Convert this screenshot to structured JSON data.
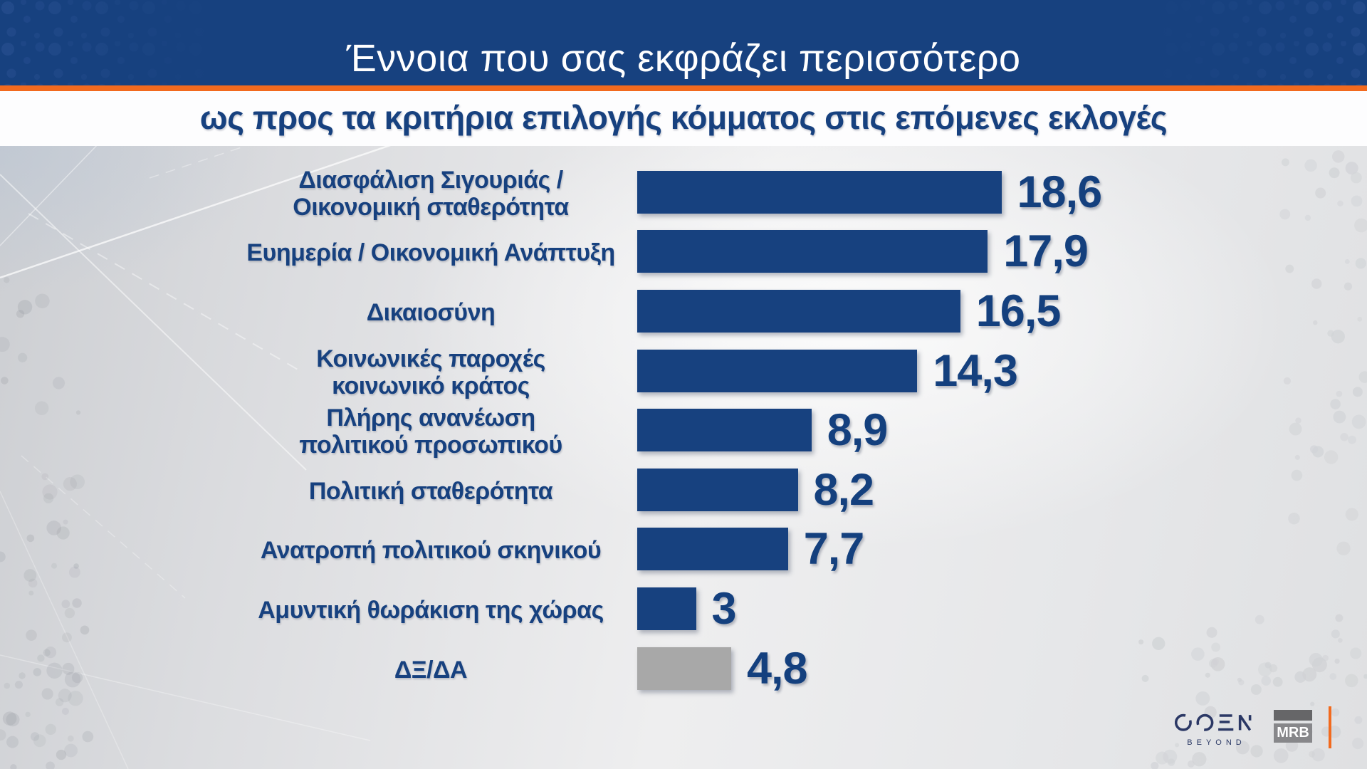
{
  "header": {
    "title": "Έννοια που σας εκφράζει περισσότερο"
  },
  "subtitle": {
    "text": "ως προς τα κριτήρια επιλογής κόμματος στις επόμενες εκλογές"
  },
  "chart_data": {
    "type": "bar",
    "orientation": "horizontal",
    "categories": [
      "Διασφάλιση Σιγουριάς /\nΟικονομική σταθερότητα",
      "Ευημερία / Οικονομική Ανάπτυξη",
      "Δικαιοσύνη",
      "Κοινωνικές παροχές\nκοινωνικό κράτος",
      "Πλήρης ανανέωση\nπολιτικού προσωπικού",
      "Πολιτική σταθερότητα",
      "Ανατροπή πολιτικού σκηνικού",
      "Αμυντική θωράκιση της χώρας",
      "ΔΞ/ΔΑ"
    ],
    "values": [
      18.6,
      17.9,
      16.5,
      14.3,
      8.9,
      8.2,
      7.7,
      3,
      4.8
    ],
    "value_labels": [
      "18,6",
      "17,9",
      "16,5",
      "14,3",
      "8,9",
      "8,2",
      "7,7",
      "3",
      "4,8"
    ],
    "xlim": [
      0,
      20
    ],
    "grid": false,
    "legend": null,
    "bar_color": "#17417f",
    "muted_bar_color": "#a8a8a8",
    "muted_index": 8
  },
  "footer": {
    "open_logo": "OPEN",
    "open_tagline": "BEYOND",
    "mrb_label": "MRB"
  },
  "colors": {
    "header_bg": "#17417f",
    "accent_orange": "#f26a1e",
    "title_text": "#ffffff",
    "subtitle_text": "#17417f",
    "label_text": "#17417f",
    "value_text": "#14407e",
    "muted_bar": "#a8a8a8"
  }
}
